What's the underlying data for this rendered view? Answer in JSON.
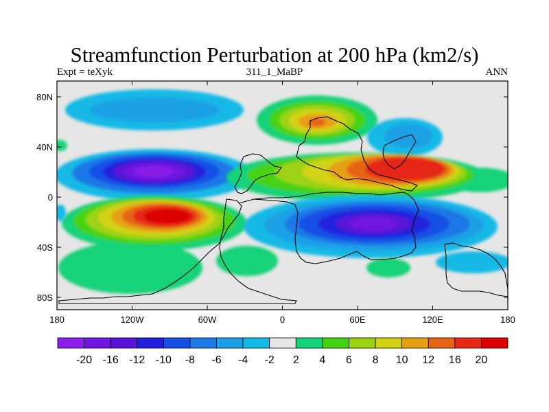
{
  "title": "Streamfunction Perturbation at 200 hPa (km2/s)",
  "left_string": "Expt = teXyk",
  "center_string": "311_1_MaBP",
  "right_string": "ANN",
  "axes": {
    "lon_ticks": [
      "180",
      "120W",
      "60W",
      "0",
      "60E",
      "120E",
      "180"
    ],
    "lat_ticks": [
      "80N",
      "40N",
      "0",
      "40S",
      "80S"
    ]
  },
  "colorbar": {
    "labels": [
      "-20",
      "-16",
      "-12",
      "-10",
      "-8",
      "-6",
      "-4",
      "-2",
      "2",
      "4",
      "6",
      "8",
      "10",
      "12",
      "16",
      "20"
    ],
    "colors": [
      "#8a1ee8",
      "#7014e0",
      "#5a14d8",
      "#2020dc",
      "#1450e6",
      "#1e78e6",
      "#1ea0e6",
      "#14b9e6",
      "#e6e6e6",
      "#14d278",
      "#46d214",
      "#9cd214",
      "#d2d214",
      "#e6a014",
      "#e66414",
      "#e62814",
      "#dc0000"
    ]
  },
  "colors": {
    "neutral": "#e6e6e6",
    "coast": "#000000"
  }
}
